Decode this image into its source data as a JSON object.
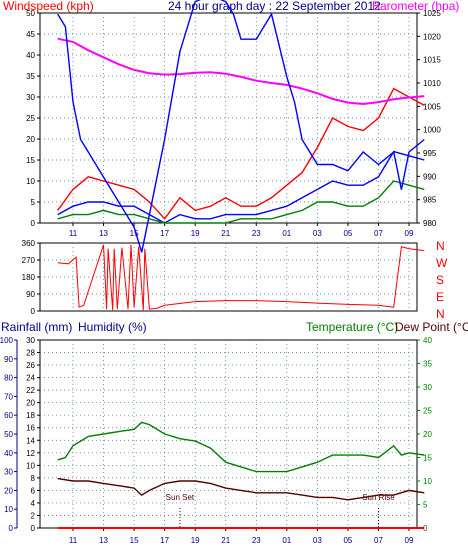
{
  "colors": {
    "windspeed": "#ff0000",
    "windaverage": "#0000ff",
    "windlull": "#008000",
    "barometer": "#ff00ff",
    "direction": "#ff0000",
    "temperature": "#008000",
    "humidity": "#0000ff",
    "dewpoint": "#550000",
    "rainfall": "#ff0000",
    "axis_ink": "#000000",
    "axis_blue": "#00008b",
    "grid": "#3a6ea5"
  },
  "chart_data": [
    {
      "id": "wind",
      "type": "line",
      "title": "24 hour graph day : 22 September 2012",
      "left_label": "Windspeed (kph)",
      "right_label": "Barometer (hpa)",
      "x_ticks": [
        "11",
        "13",
        "15",
        "17",
        "19",
        "21",
        "23",
        "01",
        "03",
        "05",
        "07",
        "09"
      ],
      "y_left": {
        "min": 0,
        "max": 50,
        "step": 5
      },
      "y_right": {
        "min": 980,
        "max": 1025,
        "step": 5
      },
      "grid": true,
      "series": [
        {
          "key": "gust",
          "color_key": "windspeed",
          "axis": "left",
          "x": [
            0,
            1,
            2,
            3,
            4,
            5,
            6,
            7,
            8,
            9,
            10,
            11,
            12,
            13,
            14,
            15,
            16,
            17,
            18,
            19,
            20,
            21,
            22,
            23,
            24
          ],
          "y": [
            3,
            8,
            11,
            10,
            9,
            8,
            5,
            1,
            6,
            3,
            4,
            6,
            4,
            4,
            6,
            9,
            12,
            18,
            25,
            23,
            22,
            25,
            32,
            30,
            28
          ]
        },
        {
          "key": "average",
          "color_key": "windaverage",
          "axis": "left",
          "x": [
            0,
            1,
            2,
            3,
            4,
            5,
            6,
            7,
            8,
            9,
            10,
            11,
            12,
            13,
            14,
            15,
            16,
            17,
            18,
            19,
            20,
            21,
            22,
            23,
            24
          ],
          "y": [
            2,
            4,
            5,
            5,
            4,
            4,
            2,
            0,
            2,
            1,
            1,
            2,
            2,
            2,
            3,
            4,
            6,
            8,
            10,
            9,
            9,
            11,
            17,
            16,
            15
          ]
        },
        {
          "key": "lull",
          "color_key": "windlull",
          "axis": "left",
          "x": [
            0,
            1,
            2,
            3,
            4,
            5,
            6,
            7,
            8,
            9,
            10,
            11,
            12,
            13,
            14,
            15,
            16,
            17,
            18,
            19,
            20,
            21,
            22,
            23,
            24
          ],
          "y": [
            1,
            2,
            2,
            3,
            2,
            2,
            1,
            0,
            0,
            0,
            0,
            0,
            1,
            1,
            1,
            2,
            3,
            5,
            5,
            4,
            4,
            6,
            10,
            9,
            8
          ]
        },
        {
          "key": "barometer",
          "color_key": "barometer",
          "axis": "right",
          "x": [
            0,
            1,
            2,
            3,
            4,
            5,
            6,
            7,
            8,
            9,
            10,
            11,
            12,
            13,
            14,
            15,
            16,
            17,
            18,
            19,
            20,
            21,
            22,
            23,
            24
          ],
          "y": [
            1019.5,
            1018.8,
            1017,
            1015.5,
            1014,
            1012.8,
            1012.1,
            1011.8,
            1011.9,
            1012.2,
            1012.3,
            1012,
            1011.3,
            1010.5,
            1010,
            1009.6,
            1008.8,
            1007.8,
            1006.6,
            1005.8,
            1005.5,
            1005.9,
            1006.5,
            1006.9,
            1007.2
          ]
        }
      ]
    },
    {
      "id": "direction",
      "type": "line",
      "y_left": {
        "min": 0,
        "max": 360,
        "ticks": [
          0,
          90,
          180,
          270,
          360
        ]
      },
      "right_labels": [
        "N",
        "W",
        "S",
        "E",
        "N"
      ],
      "grid": true,
      "series": [
        {
          "key": "direction",
          "color_key": "direction",
          "x": [
            0,
            0.7,
            1.2,
            1.4,
            1.7,
            3,
            3.2,
            3.3,
            3.6,
            3.7,
            3.9,
            4.2,
            4.6,
            4.8,
            5,
            5.3,
            5.6,
            5.7,
            6,
            6.5,
            7,
            9,
            11,
            13,
            15,
            17,
            19,
            21,
            22,
            22.5,
            23,
            24
          ],
          "y": [
            255,
            250,
            285,
            20,
            30,
            350,
            10,
            330,
            5,
            330,
            10,
            335,
            10,
            350,
            20,
            340,
            5,
            330,
            10,
            15,
            30,
            50,
            55,
            55,
            50,
            42,
            35,
            30,
            20,
            340,
            330,
            320
          ]
        }
      ]
    },
    {
      "id": "temphum",
      "type": "line",
      "left_labels": [
        "Rainfall (mm)",
        "Humidity (%)"
      ],
      "right_labels": [
        "Temperature (°C)",
        "Dew Point (°C)"
      ],
      "y_rain": {
        "min": 0,
        "max": 100,
        "step": 10
      },
      "y_humidity": {
        "min": 0,
        "max": 30,
        "step": 2
      },
      "y_temperature": {
        "min": 0,
        "max": 40,
        "step": 5
      },
      "annotations": [
        {
          "text": "Sun Set",
          "x": 8
        },
        {
          "text": "Sun Rise",
          "x": 21
        }
      ],
      "grid": true,
      "series": [
        {
          "key": "humidity",
          "color_key": "humidity",
          "axis": "left",
          "x": [
            0,
            0.5,
            1,
            1.5,
            2,
            3,
            4,
            5,
            5.5,
            6,
            7,
            8,
            9,
            10,
            11,
            11.5,
            12,
            13,
            14,
            15,
            15.5,
            16,
            17,
            18,
            19,
            20,
            21,
            22,
            22.5,
            23,
            24
          ],
          "y": [
            82,
            80,
            68,
            62,
            60,
            56,
            52,
            48,
            44,
            50,
            62,
            76,
            84,
            85,
            84,
            82,
            78,
            78,
            82,
            72,
            68,
            62,
            58,
            58,
            57,
            60,
            58,
            60,
            54,
            60,
            62
          ]
        },
        {
          "key": "temperature",
          "color_key": "temperature",
          "axis": "right",
          "x": [
            0,
            0.5,
            1,
            2,
            3,
            4,
            5,
            5.5,
            6,
            7,
            8,
            9,
            10,
            11,
            12,
            13,
            14,
            15,
            16,
            17,
            18,
            19,
            20,
            21,
            22,
            22.5,
            23,
            24
          ],
          "y": [
            14.5,
            15,
            17.5,
            19.5,
            20,
            20.5,
            21,
            22.5,
            22,
            20,
            19,
            18.5,
            17,
            14,
            13,
            12,
            12,
            12,
            13,
            14,
            15.5,
            15.5,
            15.5,
            15,
            17.5,
            15.5,
            16,
            15.5
          ]
        },
        {
          "key": "dewpoint",
          "color_key": "dewpoint",
          "axis": "right",
          "x": [
            0,
            1,
            2,
            3,
            4,
            5,
            5.5,
            6,
            7,
            8,
            9,
            10,
            11,
            12,
            13,
            14,
            15,
            16,
            17,
            18,
            19,
            20,
            21,
            22,
            23,
            24
          ],
          "y": [
            10.5,
            10,
            10,
            9.5,
            9,
            8.5,
            7,
            8,
            9.5,
            10,
            10,
            9.5,
            8.5,
            8,
            7.5,
            7.5,
            7.5,
            7,
            6.5,
            6.5,
            6,
            6.5,
            7,
            7,
            8,
            7.5
          ]
        },
        {
          "key": "rainfall",
          "color_key": "rainfall",
          "axis": "rain",
          "x": [
            0,
            24
          ],
          "y": [
            0,
            0
          ]
        }
      ]
    }
  ]
}
